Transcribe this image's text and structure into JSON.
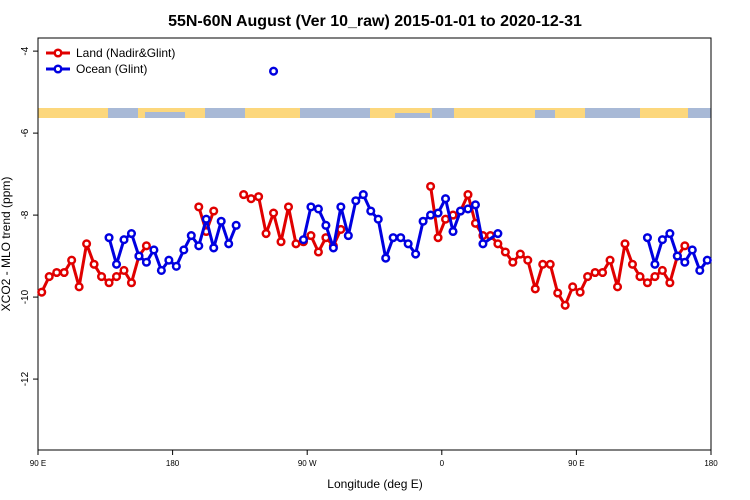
{
  "chart_data": {
    "type": "line",
    "title": "55N-60N August (Ver 10_raw)   2015-01-01 to 2020-12-31",
    "x_label": "Longitude (deg E)",
    "y_label": "XCO2 - MLO trend (ppm)",
    "xlim": [
      90,
      540
    ],
    "xticks": [
      {
        "value": 90,
        "label": "90 E"
      },
      {
        "value": 180,
        "label": "180"
      },
      {
        "value": 270,
        "label": "90 W"
      },
      {
        "value": 360,
        "label": "0"
      },
      {
        "value": 450,
        "label": "90 E"
      },
      {
        "value": 540,
        "label": "180"
      }
    ],
    "ylim": [
      -13.73,
      -3.68
    ],
    "yticks": [
      -4,
      -6,
      -8,
      -10,
      -12
    ],
    "legend": "top-left",
    "series": [
      {
        "name": "Land (Nadir&Glint)",
        "color": "#e00000",
        "x": [
          92.5,
          97.5,
          102.5,
          107.5,
          112.5,
          117.5,
          122.5,
          127.5,
          132.5,
          137.5,
          142.5,
          147.5,
          152.5,
          157.5,
          162.5,
          167.5,
          197.5,
          202.5,
          207.5,
          212.5,
          227.5,
          232.5,
          237.5,
          242.5,
          247.5,
          252.5,
          257.5,
          262.5,
          267.5,
          272.5,
          277.5,
          282.5,
          287.5,
          292.5,
          297.5,
          352.5,
          357.5,
          362.5,
          367.5,
          372.5,
          377.5,
          382.5,
          387.5,
          392.5,
          397.5,
          402.5,
          407.5,
          412.5,
          417.5,
          422.5,
          427.5,
          432.5,
          437.5,
          442.5,
          447.5,
          452.5,
          457.5,
          462.5,
          467.5,
          472.5,
          477.5,
          482.5,
          487.5,
          492.5,
          497.5,
          502.5,
          507.5,
          512.5,
          517.5,
          522.5
        ],
        "values": [
          -9.88,
          -9.5,
          -9.4,
          -9.4,
          -9.1,
          -9.75,
          -8.7,
          -9.2,
          -9.5,
          -9.65,
          -9.5,
          -9.35,
          -9.65,
          -9.0,
          -8.75,
          null,
          -7.8,
          -8.4,
          -7.9,
          null,
          -7.5,
          -7.6,
          -7.55,
          -8.45,
          -7.95,
          -8.65,
          -7.8,
          -8.7,
          -8.65,
          -8.5,
          -8.9,
          -8.55,
          -8.75,
          -8.35,
          null,
          -7.3,
          -8.55,
          -8.1,
          -8.0,
          -7.9,
          -7.5,
          -8.2,
          -8.5,
          -8.5,
          -8.7,
          -8.9,
          -9.15,
          -8.95,
          -9.1,
          -9.8,
          -9.2,
          -9.2,
          -9.9,
          -10.2,
          -9.75,
          -9.88,
          -9.5,
          -9.4,
          -9.4,
          -9.1,
          -9.75,
          -8.7,
          -9.2,
          -9.5,
          -9.65,
          -9.5,
          -9.35,
          -9.65,
          -9.0,
          -8.75
        ]
      },
      {
        "name": "Ocean (Glint)",
        "color": "#0000e0",
        "x": [
          137.5,
          142.5,
          147.5,
          152.5,
          157.5,
          162.5,
          167.5,
          172.5,
          177.5,
          182.5,
          187.5,
          192.5,
          197.5,
          202.5,
          207.5,
          212.5,
          217.5,
          222.5,
          227.5,
          247.5,
          252.5,
          267.5,
          272.5,
          277.5,
          282.5,
          287.5,
          292.5,
          297.5,
          302.5,
          307.5,
          312.5,
          317.5,
          322.5,
          327.5,
          332.5,
          337.5,
          342.5,
          347.5,
          352.5,
          357.5,
          362.5,
          367.5,
          372.5,
          377.5,
          382.5,
          387.5,
          397.5,
          402.5,
          497.5,
          502.5,
          507.5,
          512.5,
          517.5,
          522.5,
          527.5,
          532.5,
          537.5
        ],
        "values": [
          -8.55,
          -9.2,
          -8.6,
          -8.45,
          -9.0,
          -9.15,
          -8.85,
          -9.35,
          -9.1,
          -9.25,
          -8.85,
          -8.5,
          -8.75,
          -8.1,
          -8.8,
          -8.15,
          -8.7,
          -8.25,
          null,
          -4.49,
          null,
          -8.6,
          -7.8,
          -7.85,
          -8.25,
          -8.8,
          -7.8,
          -8.5,
          -7.65,
          -7.5,
          -7.9,
          -8.1,
          -9.05,
          -8.55,
          -8.55,
          -8.7,
          -8.95,
          -8.15,
          -8.0,
          -7.95,
          -7.6,
          -8.4,
          -7.9,
          -7.85,
          -7.75,
          -8.7,
          -8.45,
          null,
          -8.55,
          -9.2,
          -8.6,
          -8.45,
          -9.0,
          -9.15,
          -8.85,
          -9.35,
          -9.1
        ]
      }
    ]
  }
}
